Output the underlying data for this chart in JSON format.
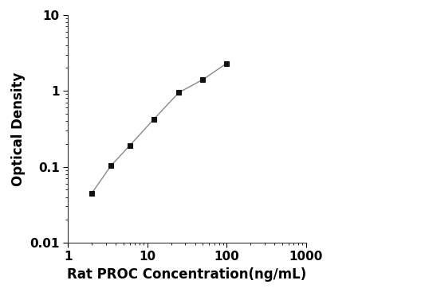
{
  "x": [
    2,
    3.5,
    6,
    12,
    25,
    50,
    100
  ],
  "y": [
    0.045,
    0.104,
    0.19,
    0.42,
    0.95,
    1.4,
    2.3
  ],
  "xlabel": "Rat PROC Concentration(ng/mL)",
  "ylabel": "Optical Density",
  "xlim": [
    1,
    1000
  ],
  "ylim": [
    0.01,
    10
  ],
  "line_color": "#888888",
  "marker_color": "#111111",
  "marker": "s",
  "marker_size": 5,
  "line_width": 1.0,
  "background_color": "#ffffff",
  "xlabel_fontsize": 12,
  "ylabel_fontsize": 12,
  "tick_fontsize": 11,
  "x_ticks": [
    1,
    10,
    100,
    1000
  ],
  "y_ticks": [
    0.01,
    0.1,
    1,
    10
  ],
  "font_weight": "bold"
}
